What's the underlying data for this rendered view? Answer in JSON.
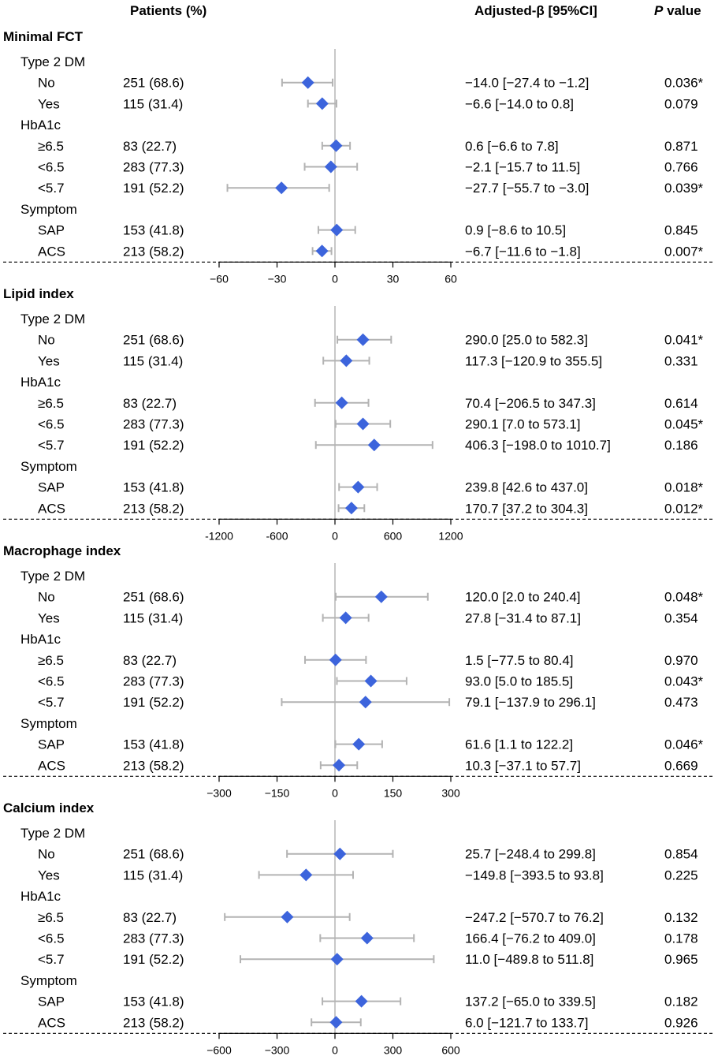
{
  "header": {
    "patients_label": "Patients (%)",
    "beta_label": "Adjusted-β [95%CI]",
    "p_italic": "P",
    "p_rest": " value"
  },
  "colors": {
    "marker": "#3c64dc",
    "ci_line": "#b3b3b3",
    "zero_line": "#c8c8c8"
  },
  "chart_data": [
    {
      "type": "forest",
      "title": "Minimal FCT",
      "xlim": [
        -60,
        60
      ],
      "ticks": [
        -60,
        -30,
        0,
        30,
        60
      ],
      "tick_labels": [
        "−60",
        "−30",
        "0",
        "30",
        "60"
      ],
      "groups": [
        {
          "label": "Type 2 DM",
          "rows": [
            {
              "label": "No",
              "patients": "251 (68.6)",
              "est": -14.0,
              "lo": -27.4,
              "hi": -1.2,
              "ci_text": "−14.0 [−27.4 to −1.2]",
              "p": "0.036*"
            },
            {
              "label": "Yes",
              "patients": "115 (31.4)",
              "est": -6.6,
              "lo": -14.0,
              "hi": 0.8,
              "ci_text": "−6.6 [−14.0 to 0.8]",
              "p": "0.079"
            }
          ]
        },
        {
          "label": "HbA1c",
          "rows": [
            {
              "label": "≥6.5",
              "patients": "83 (22.7)",
              "est": 0.6,
              "lo": -6.6,
              "hi": 7.8,
              "ci_text": "0.6 [−6.6 to 7.8]",
              "p": "0.871"
            },
            {
              "label": "<6.5",
              "patients": "283 (77.3)",
              "est": -2.1,
              "lo": -15.7,
              "hi": 11.5,
              "ci_text": "−2.1 [−15.7 to 11.5]",
              "p": "0.766"
            },
            {
              "label": "<5.7",
              "patients": "191 (52.2)",
              "est": -27.7,
              "lo": -55.7,
              "hi": -3.0,
              "ci_text": "−27.7 [−55.7 to −3.0]",
              "p": "0.039*"
            }
          ]
        },
        {
          "label": "Symptom",
          "rows": [
            {
              "label": "SAP",
              "patients": "153 (41.8)",
              "est": 0.9,
              "lo": -8.6,
              "hi": 10.5,
              "ci_text": "0.9 [−8.6 to 10.5]",
              "p": "0.845"
            },
            {
              "label": "ACS",
              "patients": "213 (58.2)",
              "est": -6.7,
              "lo": -11.6,
              "hi": -1.8,
              "ci_text": "−6.7 [−11.6 to −1.8]",
              "p": "0.007*"
            }
          ]
        }
      ]
    },
    {
      "type": "forest",
      "title": "Lipid index",
      "xlim": [
        -1200,
        1200
      ],
      "ticks": [
        -1200,
        -600,
        0,
        600,
        1200
      ],
      "tick_labels": [
        "-1200",
        "-600",
        "0",
        "600",
        "1200"
      ],
      "groups": [
        {
          "label": "Type 2 DM",
          "rows": [
            {
              "label": "No",
              "patients": "251 (68.6)",
              "est": 290.0,
              "lo": 25.0,
              "hi": 582.3,
              "ci_text": "290.0 [25.0 to 582.3]",
              "p": "0.041*"
            },
            {
              "label": "Yes",
              "patients": "115 (31.4)",
              "est": 117.3,
              "lo": -120.9,
              "hi": 355.5,
              "ci_text": "117.3 [−120.9 to 355.5]",
              "p": "0.331"
            }
          ]
        },
        {
          "label": "HbA1c",
          "rows": [
            {
              "label": "≥6.5",
              "patients": "83 (22.7)",
              "est": 70.4,
              "lo": -206.5,
              "hi": 347.3,
              "ci_text": "70.4 [−206.5 to 347.3]",
              "p": "0.614"
            },
            {
              "label": "<6.5",
              "patients": "283 (77.3)",
              "est": 290.1,
              "lo": 7.0,
              "hi": 573.1,
              "ci_text": "290.1 [7.0 to 573.1]",
              "p": "0.045*"
            },
            {
              "label": "<5.7",
              "patients": "191 (52.2)",
              "est": 406.3,
              "lo": -198.0,
              "hi": 1010.7,
              "ci_text": "406.3 [−198.0 to 1010.7]",
              "p": "0.186"
            }
          ]
        },
        {
          "label": "Symptom",
          "rows": [
            {
              "label": "SAP",
              "patients": "153 (41.8)",
              "est": 239.8,
              "lo": 42.6,
              "hi": 437.0,
              "ci_text": "239.8 [42.6 to 437.0]",
              "p": "0.018*"
            },
            {
              "label": "ACS",
              "patients": "213 (58.2)",
              "est": 170.7,
              "lo": 37.2,
              "hi": 304.3,
              "ci_text": "170.7 [37.2 to 304.3]",
              "p": "0.012*"
            }
          ]
        }
      ]
    },
    {
      "type": "forest",
      "title": "Macrophage index",
      "xlim": [
        -300,
        300
      ],
      "ticks": [
        -300,
        -150,
        0,
        150,
        300
      ],
      "tick_labels": [
        "−300",
        "−150",
        "0",
        "150",
        "300"
      ],
      "groups": [
        {
          "label": "Type 2 DM",
          "rows": [
            {
              "label": "No",
              "patients": "251 (68.6)",
              "est": 120.0,
              "lo": 2.0,
              "hi": 240.4,
              "ci_text": "120.0 [2.0 to 240.4]",
              "p": "0.048*"
            },
            {
              "label": "Yes",
              "patients": "115 (31.4)",
              "est": 27.8,
              "lo": -31.4,
              "hi": 87.1,
              "ci_text": "27.8 [−31.4 to 87.1]",
              "p": "0.354"
            }
          ]
        },
        {
          "label": "HbA1c",
          "rows": [
            {
              "label": "≥6.5",
              "patients": "83 (22.7)",
              "est": 1.5,
              "lo": -77.5,
              "hi": 80.4,
              "ci_text": "1.5 [−77.5 to 80.4]",
              "p": "0.970"
            },
            {
              "label": "<6.5",
              "patients": "283 (77.3)",
              "est": 93.0,
              "lo": 5.0,
              "hi": 185.5,
              "ci_text": "93.0 [5.0 to 185.5]",
              "p": "0.043*"
            },
            {
              "label": "<5.7",
              "patients": "191 (52.2)",
              "est": 79.1,
              "lo": -137.9,
              "hi": 296.1,
              "ci_text": "79.1 [−137.9 to 296.1]",
              "p": "0.473"
            }
          ]
        },
        {
          "label": "Symptom",
          "rows": [
            {
              "label": "SAP",
              "patients": "153 (41.8)",
              "est": 61.6,
              "lo": 1.1,
              "hi": 122.2,
              "ci_text": "61.6 [1.1 to 122.2]",
              "p": "0.046*"
            },
            {
              "label": "ACS",
              "patients": "213 (58.2)",
              "est": 10.3,
              "lo": -37.1,
              "hi": 57.7,
              "ci_text": "10.3 [−37.1 to 57.7]",
              "p": "0.669"
            }
          ]
        }
      ]
    },
    {
      "type": "forest",
      "title": "Calcium index",
      "xlim": [
        -600,
        600
      ],
      "ticks": [
        -600,
        -300,
        0,
        300,
        600
      ],
      "tick_labels": [
        "−600",
        "−300",
        "0",
        "300",
        "600"
      ],
      "groups": [
        {
          "label": "Type 2 DM",
          "rows": [
            {
              "label": "No",
              "patients": "251 (68.6)",
              "est": 25.7,
              "lo": -248.4,
              "hi": 299.8,
              "ci_text": "25.7 [−248.4 to 299.8]",
              "p": "0.854"
            },
            {
              "label": "Yes",
              "patients": "115 (31.4)",
              "est": -149.8,
              "lo": -393.5,
              "hi": 93.8,
              "ci_text": "−149.8 [−393.5 to 93.8]",
              "p": "0.225"
            }
          ]
        },
        {
          "label": "HbA1c",
          "rows": [
            {
              "label": "≥6.5",
              "patients": "83 (22.7)",
              "est": -247.2,
              "lo": -570.7,
              "hi": 76.2,
              "ci_text": "−247.2 [−570.7 to 76.2]",
              "p": "0.132"
            },
            {
              "label": "<6.5",
              "patients": "283 (77.3)",
              "est": 166.4,
              "lo": -76.2,
              "hi": 409.0,
              "ci_text": "166.4 [−76.2 to 409.0]",
              "p": "0.178"
            },
            {
              "label": "<5.7",
              "patients": "191 (52.2)",
              "est": 11.0,
              "lo": -489.8,
              "hi": 511.8,
              "ci_text": "11.0 [−489.8 to 511.8]",
              "p": "0.965"
            }
          ]
        },
        {
          "label": "Symptom",
          "rows": [
            {
              "label": "SAP",
              "patients": "153 (41.8)",
              "est": 137.2,
              "lo": -65.0,
              "hi": 339.5,
              "ci_text": "137.2 [−65.0 to 339.5]",
              "p": "0.182"
            },
            {
              "label": "ACS",
              "patients": "213 (58.2)",
              "est": 6.0,
              "lo": -121.7,
              "hi": 133.7,
              "ci_text": "6.0 [−121.7 to 133.7]",
              "p": "0.926"
            }
          ]
        }
      ]
    }
  ]
}
